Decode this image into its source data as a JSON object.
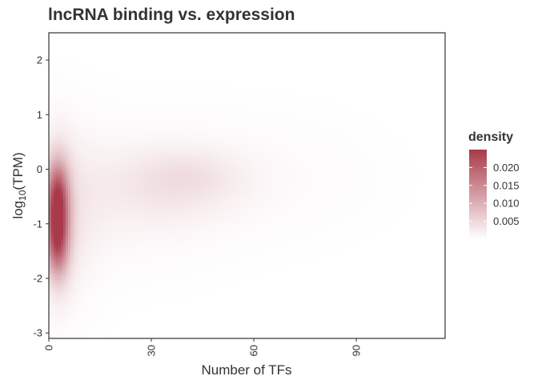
{
  "chart_data": {
    "type": "heatmap",
    "subtype": "2d-density",
    "title": "lncRNA binding vs. expression",
    "xlabel": "Number of TFs",
    "ylabel": {
      "base": "log",
      "sub": "10",
      "rest": "(TPM)"
    },
    "xlim": [
      0,
      116
    ],
    "ylim": [
      -3.1,
      2.5
    ],
    "x_ticks": [
      0,
      30,
      60,
      90
    ],
    "x_tick_labels": [
      "0",
      "30",
      "60",
      "90"
    ],
    "y_ticks": [
      -3,
      -2,
      -1,
      0,
      1,
      2
    ],
    "y_tick_labels": [
      "-3",
      "-2",
      "-1",
      "0",
      "1",
      "2"
    ],
    "grid": false,
    "legend": {
      "title": "density",
      "placement": "right",
      "range": [
        0,
        0.025
      ],
      "breaks": [
        0.005,
        0.01,
        0.015,
        0.02
      ],
      "labels": [
        "0.005",
        "0.010",
        "0.015",
        "0.020"
      ],
      "low_color": "#ffffff",
      "high_color": "#a83a4a"
    },
    "density_components": [
      {
        "cx": 2.5,
        "cy": -1.3,
        "sx": 2.2,
        "sy": 0.45,
        "w": 0.017
      },
      {
        "cx": 2.5,
        "cy": -0.5,
        "sx": 2.2,
        "sy": 0.45,
        "w": 0.017
      },
      {
        "cx": 3,
        "cy": -0.9,
        "sx": 3.2,
        "sy": 0.9,
        "w": 0.005
      },
      {
        "cx": 6,
        "cy": -0.8,
        "sx": 7,
        "sy": 1.05,
        "w": 0.002
      },
      {
        "cx": 35,
        "cy": -0.3,
        "sx": 14,
        "sy": 0.45,
        "w": 0.002
      },
      {
        "cx": 42,
        "cy": -0.1,
        "sx": 10,
        "sy": 0.3,
        "w": 0.0015
      },
      {
        "cx": 24,
        "cy": -0.5,
        "sx": 18,
        "sy": 0.85,
        "w": 0.0012
      },
      {
        "cx": 58,
        "cy": -0.15,
        "sx": 24,
        "sy": 0.75,
        "w": 0.0007
      }
    ]
  }
}
